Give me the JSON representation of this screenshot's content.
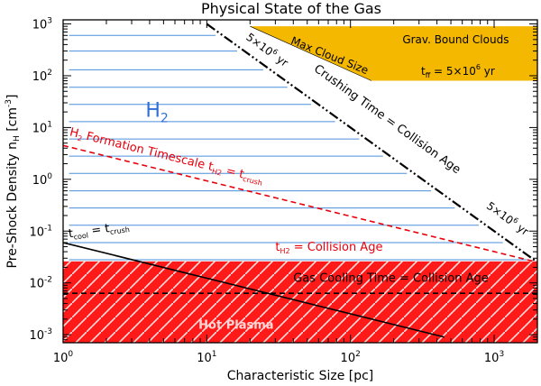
{
  "chart_data": {
    "type": "line",
    "title": "Physical State of the Gas",
    "xlabel": "Characteristic Size [pc]",
    "ylabel": "Pre-Shock Density n_H [cm^-3]",
    "xscale": "log",
    "yscale": "log",
    "xlim": [
      1,
      2000
    ],
    "ylim": [
      0.0007,
      1200
    ],
    "x_ticks": [
      {
        "value": 1,
        "mantissa": "10",
        "exp": "0"
      },
      {
        "value": 10,
        "mantissa": "10",
        "exp": "1"
      },
      {
        "value": 100,
        "mantissa": "10",
        "exp": "2"
      },
      {
        "value": 1000,
        "mantissa": "10",
        "exp": "3"
      }
    ],
    "y_ticks": [
      {
        "value": 0.001,
        "mantissa": "10",
        "exp": "-3"
      },
      {
        "value": 0.01,
        "mantissa": "10",
        "exp": "-2"
      },
      {
        "value": 0.1,
        "mantissa": "10",
        "exp": "-1"
      },
      {
        "value": 1,
        "mantissa": "10",
        "exp": "0"
      },
      {
        "value": 10,
        "mantissa": "10",
        "exp": "1"
      },
      {
        "value": 100,
        "mantissa": "10",
        "exp": "2"
      },
      {
        "value": 1000,
        "mantissa": "10",
        "exp": "3"
      }
    ],
    "regions": {
      "grav_bound": {
        "label": "Grav. Bound Clouds",
        "tff_label": "t_ff = 5×10^6 yr",
        "polygon": [
          [
            20,
            900
          ],
          [
            2000,
            900
          ],
          [
            2000,
            80
          ],
          [
            140,
            80
          ]
        ],
        "color": "#f5b800"
      },
      "hot_plasma": {
        "label": "Hot Plasma",
        "n_top": 0.026,
        "color": "#ff1a1a"
      },
      "h2_label": "H2"
    },
    "series": [
      {
        "label": "Max Cloud Size",
        "points": [
          [
            20,
            900
          ],
          [
            140,
            80
          ]
        ],
        "style": "boundary",
        "color": "#000000"
      },
      {
        "label": "Crushing Time = Collision Age",
        "points": [
          [
            10,
            1000
          ],
          [
            2000,
            0.025
          ]
        ],
        "style": "dash-dot-dot",
        "color": "#000000"
      },
      {
        "label": "H2 Formation Timescale t_H2 = t_crush",
        "points": [
          [
            1,
            4.5
          ],
          [
            2000,
            0.025
          ]
        ],
        "style": "dashed",
        "color": "#e8000b"
      },
      {
        "label": "t_cool = t_crush",
        "points": [
          [
            1,
            0.06
          ],
          [
            450,
            0.0009
          ]
        ],
        "style": "solid",
        "color": "#000000"
      },
      {
        "label": "Gas Cooling Time = Collision Age",
        "points": [
          [
            1,
            0.0063
          ],
          [
            2000,
            0.0063
          ]
        ],
        "style": "dashed",
        "color": "#000000"
      }
    ],
    "h2_grid_lines": {
      "color": "#4a8fdc",
      "densities": [
        600,
        300,
        130,
        60,
        28,
        13,
        6,
        2.8,
        1.3,
        0.6,
        0.28,
        0.13,
        0.06,
        0.028
      ]
    },
    "annotations": [
      {
        "text": "5×10^6 yr",
        "note": "upper"
      },
      {
        "text": "5×10^6 yr",
        "note": "lower"
      },
      {
        "text": "t_H2 = Collision Age"
      }
    ]
  }
}
